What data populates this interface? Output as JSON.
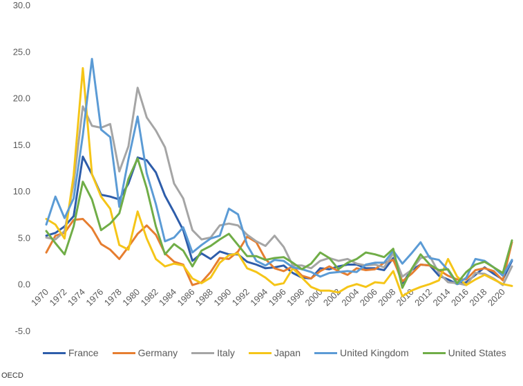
{
  "source": "OECD",
  "chart_data": {
    "type": "line",
    "title": "",
    "xlabel": "",
    "ylabel": "",
    "ylim": [
      -5,
      30
    ],
    "y_ticks": [
      "30.0",
      "25.0",
      "20.0",
      "15.0",
      "10.0",
      "5.0",
      "0.0",
      "-5.0"
    ],
    "x_tick_labels": [
      "1970",
      "1972",
      "1974",
      "1976",
      "1978",
      "1980",
      "1982",
      "1984",
      "1986",
      "1988",
      "1990",
      "1992",
      "1994",
      "1996",
      "1998",
      "2000",
      "2002",
      "2004",
      "2006",
      "2008",
      "2010",
      "2012",
      "2014",
      "2016",
      "2018",
      "2020"
    ],
    "legend_position": "bottom",
    "grid": false,
    "x": [
      1970,
      1971,
      1972,
      1973,
      1974,
      1975,
      1976,
      1977,
      1978,
      1979,
      1980,
      1981,
      1982,
      1983,
      1984,
      1985,
      1986,
      1987,
      1988,
      1989,
      1990,
      1991,
      1992,
      1993,
      1994,
      1995,
      1996,
      1997,
      1998,
      1999,
      2000,
      2001,
      2002,
      2003,
      2004,
      2005,
      2006,
      2007,
      2008,
      2009,
      2010,
      2011,
      2012,
      2013,
      2014,
      2015,
      2016,
      2017,
      2018,
      2019,
      2020,
      2021
    ],
    "series": [
      {
        "name": "France",
        "color": "#2E5DAA",
        "values": [
          5.2,
          5.5,
          6.2,
          7.3,
          13.7,
          11.8,
          9.6,
          9.4,
          9.1,
          10.8,
          13.6,
          13.3,
          12.0,
          9.5,
          7.7,
          5.8,
          2.5,
          3.3,
          2.7,
          3.5,
          3.2,
          3.2,
          2.4,
          2.1,
          1.7,
          1.8,
          2.0,
          1.2,
          0.7,
          0.6,
          1.7,
          1.6,
          1.9,
          2.1,
          2.1,
          1.7,
          1.7,
          1.5,
          2.8,
          0.1,
          1.5,
          2.1,
          2.0,
          0.9,
          0.5,
          0.0,
          0.2,
          1.0,
          1.8,
          1.1,
          0.5,
          2.5
        ]
      },
      {
        "name": "Germany",
        "color": "#E67E30",
        "values": [
          3.4,
          5.2,
          5.5,
          6.9,
          7.0,
          6.0,
          4.3,
          3.7,
          2.7,
          4.0,
          5.4,
          6.3,
          5.3,
          3.3,
          2.4,
          2.1,
          -0.1,
          0.2,
          1.3,
          2.8,
          2.7,
          3.5,
          5.1,
          4.5,
          2.7,
          1.7,
          1.4,
          1.9,
          0.9,
          0.6,
          1.4,
          1.9,
          1.4,
          1.0,
          1.7,
          1.5,
          1.6,
          2.3,
          2.6,
          0.3,
          1.1,
          2.1,
          2.0,
          1.5,
          0.9,
          0.5,
          0.5,
          1.5,
          1.7,
          1.4,
          0.4,
          4.5
        ]
      },
      {
        "name": "Italy",
        "color": "#A5A5A5",
        "values": [
          5.0,
          4.8,
          5.7,
          10.8,
          19.1,
          17.0,
          16.8,
          17.2,
          12.1,
          14.8,
          21.1,
          17.9,
          16.5,
          14.7,
          10.8,
          9.2,
          5.8,
          4.8,
          5.0,
          6.3,
          6.5,
          6.3,
          5.3,
          4.6,
          4.1,
          5.2,
          4.0,
          2.0,
          2.0,
          1.7,
          2.5,
          2.8,
          2.5,
          2.7,
          2.2,
          2.0,
          2.1,
          1.8,
          3.3,
          0.8,
          1.5,
          2.8,
          3.0,
          1.2,
          0.2,
          0.1,
          -0.1,
          1.2,
          1.1,
          0.6,
          -0.1,
          1.9
        ]
      },
      {
        "name": "Japan",
        "color": "#F5C518",
        "values": [
          7.0,
          6.4,
          4.9,
          11.7,
          23.2,
          11.8,
          9.4,
          8.1,
          4.2,
          3.7,
          7.8,
          4.9,
          2.7,
          1.9,
          2.2,
          2.0,
          0.6,
          0.1,
          0.7,
          2.3,
          3.1,
          3.3,
          1.7,
          1.3,
          0.7,
          -0.1,
          0.1,
          1.7,
          0.7,
          -0.3,
          -0.7,
          -0.7,
          -0.9,
          -0.3,
          0.0,
          -0.3,
          0.2,
          0.1,
          1.4,
          -1.3,
          -0.7,
          -0.3,
          0.0,
          0.4,
          2.7,
          0.8,
          -0.1,
          0.5,
          1.0,
          0.5,
          0.0,
          -0.2
        ]
      },
      {
        "name": "United Kingdom",
        "color": "#5B9BD5",
        "values": [
          6.4,
          9.4,
          7.1,
          9.2,
          16.0,
          24.2,
          16.6,
          15.8,
          8.3,
          13.4,
          18.0,
          11.9,
          8.6,
          4.6,
          5.0,
          6.1,
          3.4,
          4.2,
          4.9,
          5.2,
          8.1,
          7.5,
          4.2,
          2.5,
          2.0,
          2.6,
          2.5,
          1.8,
          1.6,
          1.3,
          0.8,
          1.2,
          1.3,
          1.4,
          1.3,
          2.1,
          2.3,
          2.3,
          3.6,
          2.2,
          3.3,
          4.5,
          2.8,
          2.6,
          1.5,
          0.0,
          0.7,
          2.7,
          2.5,
          1.8,
          0.9,
          2.6
        ]
      },
      {
        "name": "United States",
        "color": "#70AD47",
        "values": [
          5.7,
          4.4,
          3.2,
          6.2,
          11.0,
          9.1,
          5.8,
          6.5,
          7.6,
          11.3,
          13.5,
          10.3,
          6.2,
          3.2,
          4.3,
          3.6,
          1.9,
          3.6,
          4.1,
          4.8,
          5.4,
          4.2,
          3.0,
          3.0,
          2.6,
          2.8,
          2.9,
          2.3,
          1.6,
          2.2,
          3.4,
          2.8,
          1.6,
          2.3,
          2.7,
          3.4,
          3.2,
          2.9,
          3.8,
          -0.4,
          1.6,
          3.2,
          2.1,
          1.5,
          1.6,
          0.1,
          1.3,
          2.1,
          2.4,
          1.8,
          1.2,
          4.7
        ]
      }
    ]
  }
}
